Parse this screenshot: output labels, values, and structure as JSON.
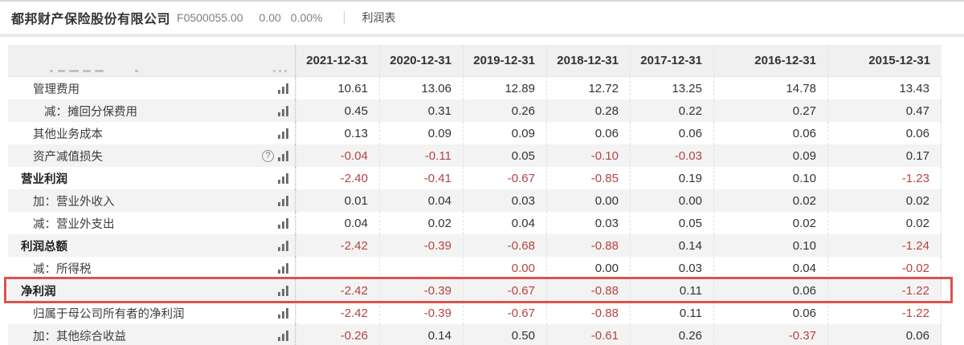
{
  "header": {
    "company_name": "都邦财产保险股份有限公司",
    "stock_code": "F0500055.00",
    "price": "0.00",
    "change_percent": "0.00%",
    "report_tab": "利润表"
  },
  "colors": {
    "negative_value": "#b54343",
    "highlight_border": "#d9534f"
  },
  "table": {
    "columns": [
      "2021-12-31",
      "2020-12-31",
      "2019-12-31",
      "2018-12-31",
      "2017-12-31",
      "2016-12-31",
      "2015-12-31"
    ],
    "rows": [
      {
        "label": "管理费用",
        "indent": 1,
        "bold": false,
        "help": false,
        "highlighted": false,
        "red_overrides": [],
        "values": [
          "10.61",
          "13.06",
          "12.89",
          "12.72",
          "13.25",
          "14.78",
          "13.43"
        ]
      },
      {
        "label": "减：摊回分保费用",
        "indent": 2,
        "bold": false,
        "help": false,
        "highlighted": false,
        "red_overrides": [],
        "values": [
          "0.45",
          "0.31",
          "0.26",
          "0.28",
          "0.22",
          "0.27",
          "0.47"
        ]
      },
      {
        "label": "其他业务成本",
        "indent": 1,
        "bold": false,
        "help": false,
        "highlighted": false,
        "red_overrides": [],
        "values": [
          "0.13",
          "0.09",
          "0.09",
          "0.06",
          "0.06",
          "0.06",
          "0.06"
        ]
      },
      {
        "label": "资产减值损失",
        "indent": 1,
        "bold": false,
        "help": true,
        "highlighted": false,
        "red_overrides": [],
        "values": [
          "-0.04",
          "-0.11",
          "0.05",
          "-0.10",
          "-0.03",
          "0.09",
          "0.17"
        ]
      },
      {
        "label": "营业利润",
        "indent": 0,
        "bold": true,
        "help": false,
        "highlighted": false,
        "red_overrides": [],
        "values": [
          "-2.40",
          "-0.41",
          "-0.67",
          "-0.85",
          "0.19",
          "0.10",
          "-1.23"
        ]
      },
      {
        "label": "加：营业外收入",
        "indent": 1,
        "bold": false,
        "help": false,
        "highlighted": false,
        "red_overrides": [],
        "values": [
          "0.01",
          "0.04",
          "0.03",
          "0.00",
          "0.00",
          "0.02",
          "0.02"
        ]
      },
      {
        "label": "减：营业外支出",
        "indent": 1,
        "bold": false,
        "help": false,
        "highlighted": false,
        "red_overrides": [],
        "values": [
          "0.04",
          "0.02",
          "0.04",
          "0.03",
          "0.05",
          "0.02",
          "0.02"
        ]
      },
      {
        "label": "利润总额",
        "indent": 0,
        "bold": true,
        "help": false,
        "highlighted": false,
        "red_overrides": [],
        "values": [
          "-2.42",
          "-0.39",
          "-0.68",
          "-0.88",
          "0.14",
          "0.10",
          "-1.24"
        ]
      },
      {
        "label": "减：所得税",
        "indent": 1,
        "bold": false,
        "help": false,
        "highlighted": false,
        "red_overrides": [
          2
        ],
        "values": [
          "",
          "",
          "0.00",
          "0.00",
          "0.03",
          "0.04",
          "-0.02"
        ]
      },
      {
        "label": "净利润",
        "indent": 0,
        "bold": true,
        "help": false,
        "highlighted": true,
        "red_overrides": [],
        "values": [
          "-2.42",
          "-0.39",
          "-0.67",
          "-0.88",
          "0.11",
          "0.06",
          "-1.22"
        ]
      },
      {
        "label": "归属于母公司所有者的净利润",
        "indent": 1,
        "bold": false,
        "help": false,
        "highlighted": false,
        "red_overrides": [],
        "values": [
          "-2.42",
          "-0.39",
          "-0.67",
          "-0.88",
          "0.11",
          "0.06",
          "-1.22"
        ]
      },
      {
        "label": "加：其他综合收益",
        "indent": 1,
        "bold": false,
        "help": false,
        "highlighted": false,
        "red_overrides": [],
        "values": [
          "-0.26",
          "0.14",
          "0.50",
          "-0.61",
          "0.26",
          "-0.37",
          "0.06"
        ]
      }
    ]
  }
}
